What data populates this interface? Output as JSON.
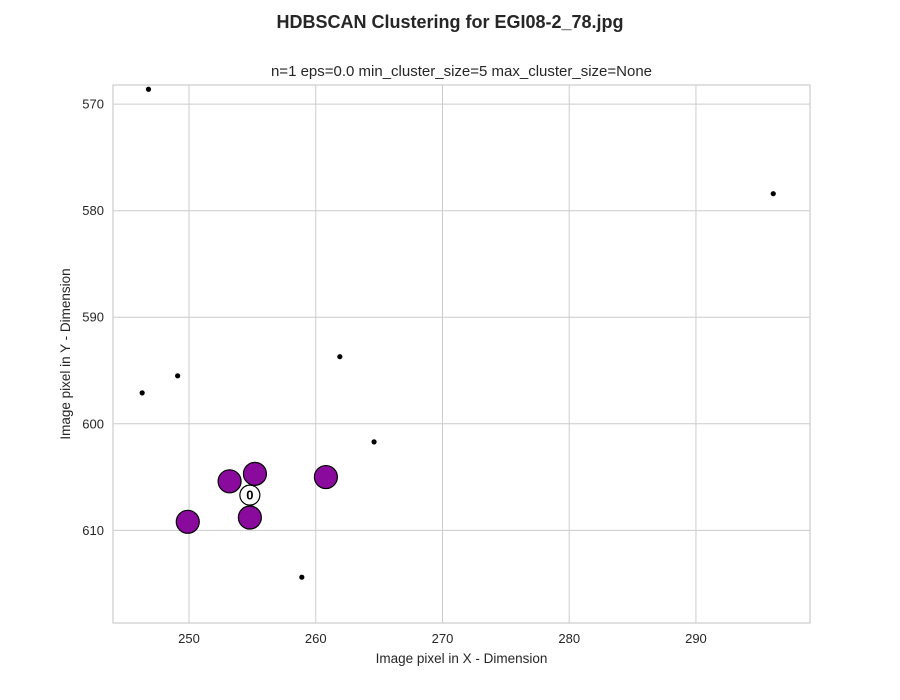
{
  "chart_data": {
    "type": "scatter",
    "title": "HDBSCAN Clustering for EGI08-2_78.jpg",
    "subtitle": "n=1 eps=0.0 min_cluster_size=5 max_cluster_size=None",
    "xlabel": "Image pixel in X - Dimension",
    "ylabel": "Image pixel in Y - Dimension",
    "xlim": [
      244,
      299
    ],
    "ylim": [
      568.2,
      618.7
    ],
    "y_inverted": true,
    "xticks": [
      250,
      260,
      270,
      280,
      290
    ],
    "yticks": [
      570,
      580,
      590,
      600,
      610
    ],
    "grid": true,
    "colors": {
      "cluster": "#8a0a9e",
      "noise": "#000000",
      "grid": "#cccccc"
    },
    "series": [
      {
        "points": [
          {
            "x": 249.9,
            "y": 609.2
          },
          {
            "x": 253.2,
            "y": 605.4
          },
          {
            "x": 255.2,
            "y": 604.7
          },
          {
            "x": 254.8,
            "y": 608.8
          },
          {
            "x": 260.8,
            "y": 605.0
          }
        ]
      },
      {
        "points": [
          {
            "x": 246.8,
            "y": 568.6
          },
          {
            "x": 296.1,
            "y": 578.4
          },
          {
            "x": 246.3,
            "y": 597.1
          },
          {
            "x": 249.1,
            "y": 595.5
          },
          {
            "x": 261.9,
            "y": 593.7
          },
          {
            "x": 264.6,
            "y": 601.7
          },
          {
            "x": 258.9,
            "y": 614.4
          }
        ]
      }
    ],
    "centroids": [
      {
        "label": "0",
        "x": 254.8,
        "y": 606.7
      }
    ]
  }
}
